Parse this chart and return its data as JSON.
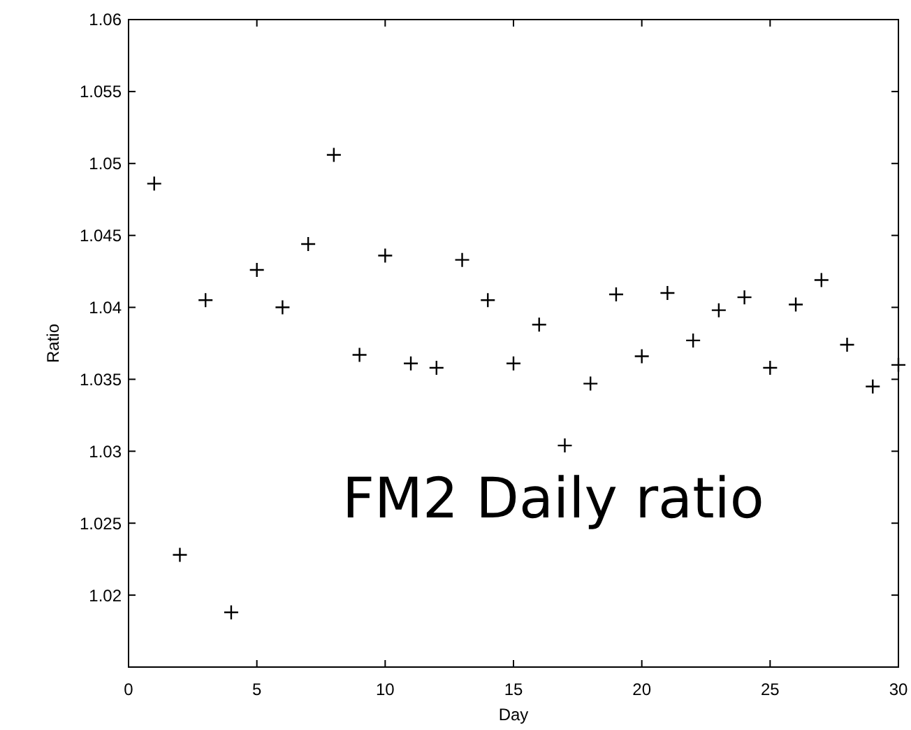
{
  "chart_data": {
    "type": "scatter",
    "xlabel": "Day",
    "ylabel": "Ratio",
    "marker": "cross",
    "grid": false,
    "annotations": [
      "FM2 Daily ratio"
    ],
    "x": [
      1,
      2,
      3,
      4,
      5,
      6,
      7,
      8,
      9,
      10,
      11,
      12,
      13,
      14,
      15,
      16,
      17,
      18,
      19,
      20,
      21,
      22,
      23,
      24,
      25,
      26,
      27,
      28,
      29,
      30
    ],
    "series": [
      {
        "color": "#000000",
        "values": [
          1.0486,
          1.0228,
          1.0405,
          1.0188,
          1.0426,
          1.04,
          1.0444,
          1.0506,
          1.0367,
          1.0436,
          1.0361,
          1.0358,
          1.0433,
          1.0405,
          1.0361,
          1.0388,
          1.0304,
          1.0347,
          1.0409,
          1.0366,
          1.041,
          1.0377,
          1.0398,
          1.0407,
          1.0358,
          1.0402,
          1.0419,
          1.0374,
          1.0345,
          1.036
        ]
      }
    ],
    "xlim": [
      0,
      30
    ],
    "xticks": [
      0,
      5,
      10,
      15,
      20,
      25,
      30
    ],
    "ylim": [
      1.015,
      1.06
    ],
    "yticks": [
      {
        "value": 1.015,
        "label": null
      },
      1.02,
      1.025,
      1.03,
      1.035,
      1.04,
      1.045,
      1.05,
      1.055,
      1.06
    ]
  }
}
